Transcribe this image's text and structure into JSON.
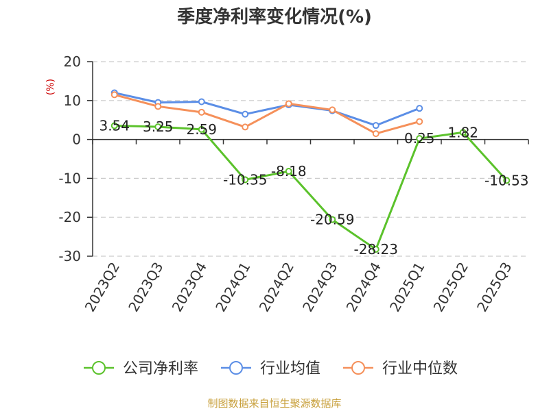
{
  "chart_data": {
    "type": "line",
    "title": "季度净利率变化情况(%)",
    "ylabel": "(%)",
    "xlabel": "",
    "ylim": [
      -30,
      20
    ],
    "yticks": [
      20,
      10,
      0,
      -10,
      -20,
      -30
    ],
    "grid": true,
    "legend_position": "bottom",
    "categories": [
      "2023Q2",
      "2023Q3",
      "2023Q4",
      "2024Q1",
      "2024Q2",
      "2024Q3",
      "2024Q4",
      "2025Q1",
      "2025Q2",
      "2025Q3"
    ],
    "series": [
      {
        "name": "公司净利率",
        "color": "#5bc22b",
        "values": [
          3.54,
          3.25,
          2.59,
          -10.35,
          -8.18,
          -20.59,
          -28.23,
          0.25,
          1.82,
          -10.53
        ],
        "labels": [
          "3.54",
          "3.25",
          "2.59",
          "-10.35",
          "-8.18",
          "-20.59",
          "-28.23",
          "0.25",
          "1.82",
          "-10.53"
        ]
      },
      {
        "name": "行业均值",
        "color": "#5b8ee6",
        "values": [
          12.0,
          9.5,
          9.7,
          6.5,
          8.9,
          7.4,
          3.6,
          8.0,
          null,
          null
        ]
      },
      {
        "name": "行业中位数",
        "color": "#f5905a",
        "values": [
          11.5,
          8.5,
          7.0,
          3.2,
          9.2,
          7.6,
          1.5,
          4.6,
          null,
          null
        ]
      }
    ],
    "source": "制图数据来自恒生聚源数据库",
    "colors": {
      "axis": "#333333",
      "grid": "#cccccc",
      "unit": "#cc0000",
      "source": "#c8a03c"
    }
  }
}
